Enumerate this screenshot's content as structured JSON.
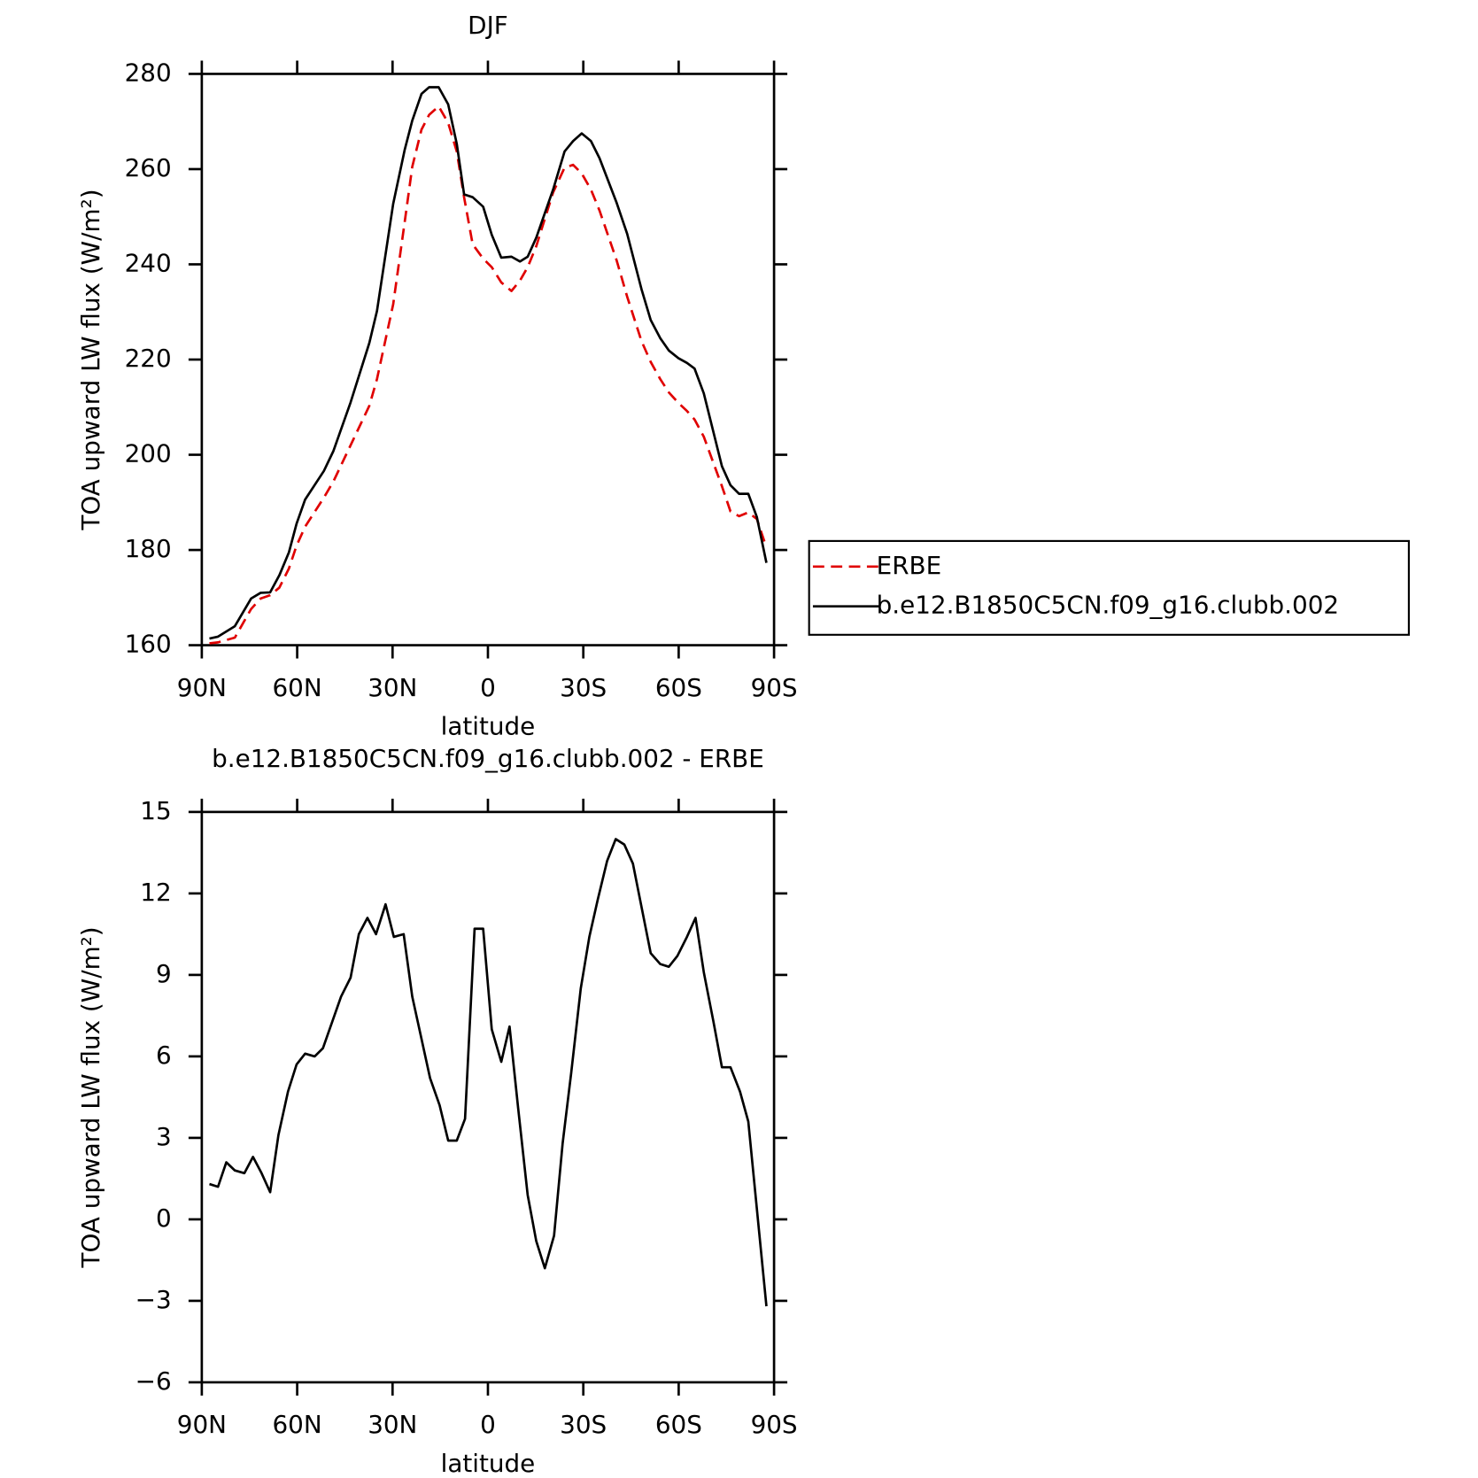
{
  "chart_data": [
    {
      "type": "line",
      "title": "DJF",
      "xlabel": "latitude",
      "ylabel": "TOA upward LW flux (W/m²)",
      "x": [
        87.6,
        84.9,
        79.6,
        74.5,
        71.5,
        68.5,
        65.6,
        62.6,
        60.2,
        57.5,
        51.6,
        48.6,
        43.2,
        37.3,
        34.9,
        29.8,
        26.2,
        23.8,
        20.9,
        18.5,
        15.5,
        12.5,
        9.8,
        7.5,
        4.8,
        1.5,
        -1.2,
        -4.2,
        -7.4,
        -10.1,
        -12.5,
        -15.2,
        -20.5,
        -24.1,
        -26.8,
        -29.5,
        -32.4,
        -35.1,
        -40.5,
        -43.8,
        -48.3,
        -51.2,
        -54.2,
        -56.9,
        -59.9,
        -62.6,
        -65,
        -67.9,
        -73.6,
        -76.3,
        -79,
        -81.9,
        -84.6,
        -87.6
      ],
      "series": [
        {
          "name": "ERBE",
          "color": "#e00000",
          "dash": true,
          "values": [
            160.4,
            160.6,
            161.6,
            167.6,
            169.8,
            170.5,
            172.1,
            176.1,
            180.9,
            184.9,
            191,
            194.4,
            202,
            210.3,
            215.9,
            231.6,
            248.8,
            260.5,
            268.3,
            271.4,
            273.2,
            269.7,
            263.7,
            254.1,
            244.2,
            241.2,
            239.4,
            236.2,
            234.4,
            236.6,
            239.4,
            243.8,
            255.1,
            260.3,
            260.9,
            259.1,
            255.7,
            251.3,
            240.8,
            233.2,
            223.9,
            219.5,
            215.9,
            213.1,
            210.9,
            209.2,
            207.4,
            203.8,
            193.4,
            188.1,
            187.1,
            187.9,
            186.5,
            180.5
          ]
        },
        {
          "name": "b.e12.B1850C5CN.f09_g16.clubb.002",
          "color": "#000000",
          "dash": false,
          "values": [
            161.4,
            161.8,
            164,
            169.8,
            171,
            171.1,
            174.7,
            179.5,
            185.5,
            190.6,
            196.6,
            200.8,
            211,
            223.5,
            230.2,
            252.7,
            264,
            270.2,
            275.8,
            277.2,
            277.2,
            273.6,
            265.3,
            254.7,
            254.1,
            252.1,
            246.2,
            241.4,
            241.6,
            240.6,
            241.6,
            245.6,
            255.7,
            263.7,
            265.9,
            267.5,
            265.9,
            262.3,
            252.9,
            246.4,
            234.8,
            228.3,
            224.5,
            221.9,
            220.3,
            219.3,
            218.1,
            212.9,
            197.6,
            193.6,
            191.8,
            191.8,
            186.9,
            177.3
          ]
        }
      ],
      "xlim": [
        90,
        -90
      ],
      "xticks": [
        {
          "value": 90,
          "label": "90N"
        },
        {
          "value": 60,
          "label": "60N"
        },
        {
          "value": 30,
          "label": "30N"
        },
        0,
        {
          "value": -30,
          "label": "30S"
        },
        {
          "value": -60,
          "label": "60S"
        },
        {
          "value": -90,
          "label": "90S"
        }
      ],
      "ylim": [
        160,
        280
      ],
      "yticks": [
        160,
        180,
        200,
        220,
        240,
        260,
        280
      ],
      "legend": "outside-right"
    },
    {
      "type": "line",
      "title": "b.e12.B1850C5CN.f09_g16.clubb.002 - ERBE",
      "xlabel": "latitude",
      "ylabel": "TOA upward LW flux (W/m²)",
      "x": [
        87.6,
        84.9,
        82.3,
        79.6,
        76.6,
        73.9,
        71.2,
        68.5,
        65.9,
        62.9,
        60.2,
        57.5,
        54.5,
        51.9,
        46.2,
        43.2,
        40.6,
        37.9,
        35.2,
        32.2,
        29.6,
        26.5,
        23.8,
        18.2,
        15.2,
        12.5,
        9.8,
        7.2,
        4.2,
        1.5,
        -1.2,
        -4.2,
        -6.8,
        -9.5,
        -12.5,
        -15.2,
        -17.9,
        -20.8,
        -23.5,
        -26.2,
        -29.2,
        -31.9,
        -34.6,
        -37.5,
        -40.2,
        -42.9,
        -45.6,
        -51.2,
        -54.2,
        -56.9,
        -59.6,
        -62.6,
        -65.3,
        -67.9,
        -70.9,
        -73.6,
        -76.3,
        -79.3,
        -81.9,
        -87.6
      ],
      "series": [
        {
          "color": "#000000",
          "dash": false,
          "values": [
            1.3,
            1.2,
            2.1,
            1.8,
            1.7,
            2.3,
            1.7,
            1.0,
            3.1,
            4.7,
            5.7,
            6.1,
            6.0,
            6.3,
            8.2,
            8.9,
            10.5,
            11.1,
            10.5,
            11.6,
            10.4,
            10.5,
            8.2,
            5.2,
            4.2,
            2.9,
            2.9,
            3.7,
            10.7,
            10.7,
            7.0,
            5.8,
            7.1,
            4.1,
            0.9,
            -0.8,
            -1.8,
            -0.6,
            2.8,
            5.4,
            8.5,
            10.4,
            11.8,
            13.2,
            14.0,
            13.8,
            13.1,
            9.8,
            9.4,
            9.3,
            9.7,
            10.4,
            11.1,
            9.1,
            7.3,
            5.6,
            5.6,
            4.7,
            3.6,
            -3.2
          ]
        }
      ],
      "xlim": [
        90,
        -90
      ],
      "xticks": [
        {
          "value": 90,
          "label": "90N"
        },
        {
          "value": 60,
          "label": "60N"
        },
        {
          "value": 30,
          "label": "30N"
        },
        0,
        {
          "value": -30,
          "label": "30S"
        },
        {
          "value": -60,
          "label": "60S"
        },
        {
          "value": -90,
          "label": "90S"
        }
      ],
      "ylim": [
        -6,
        15
      ],
      "yticks": [
        {
          "value": -6,
          "label": "−6"
        },
        {
          "value": -3,
          "label": "−3"
        },
        0,
        3,
        6,
        9,
        12,
        15
      ]
    }
  ]
}
